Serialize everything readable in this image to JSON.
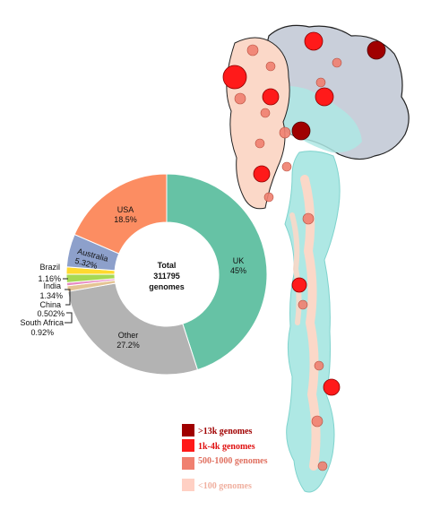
{
  "chart_data": {
    "type": "pie",
    "center_label": [
      "Total",
      "311795",
      "genomes"
    ],
    "slices": [
      {
        "name": "UK",
        "value": 45,
        "label": "45%",
        "color": "#66c2a5"
      },
      {
        "name": "Other",
        "value": 27.2,
        "label": "27.2%",
        "color": "#b3b3b3"
      },
      {
        "name": "South Africa",
        "value": 0.92,
        "label": "0.92%",
        "color": "#e5c494"
      },
      {
        "name": "China",
        "value": 0.502,
        "label": "0.502%",
        "color": "#e78ac3"
      },
      {
        "name": "India",
        "value": 1.34,
        "label": "1.34%",
        "color": "#a6d854"
      },
      {
        "name": "Brazil",
        "value": 1.16,
        "label": "1.16%",
        "color": "#ffd92f"
      },
      {
        "name": "Australia",
        "value": 5.32,
        "label": "5.32%",
        "color": "#8da0cb"
      },
      {
        "name": "USA",
        "value": 18.5,
        "label": "18.5%",
        "color": "#fc8d62"
      }
    ]
  },
  "legend": [
    {
      "label": ">13k genomes",
      "color": "#a00000",
      "text_color": "#a00000"
    },
    {
      "label": "1k-4k genomes",
      "color": "#ff1a1a",
      "text_color": "#e01010"
    },
    {
      "label": "500-1000 genomes",
      "color": "#f08070",
      "text_color": "#e07060"
    },
    {
      "label": "<100 genomes",
      "color": "#ffd0c4",
      "text_color": "#f0b0a0"
    }
  ],
  "structure_colors": {
    "spike_body": "#aee8e4",
    "spike_body_edge": "#7fd3cd",
    "head_grey": "#c9cfda",
    "head_edge": "#222222",
    "peach": "#fbd8c8"
  }
}
